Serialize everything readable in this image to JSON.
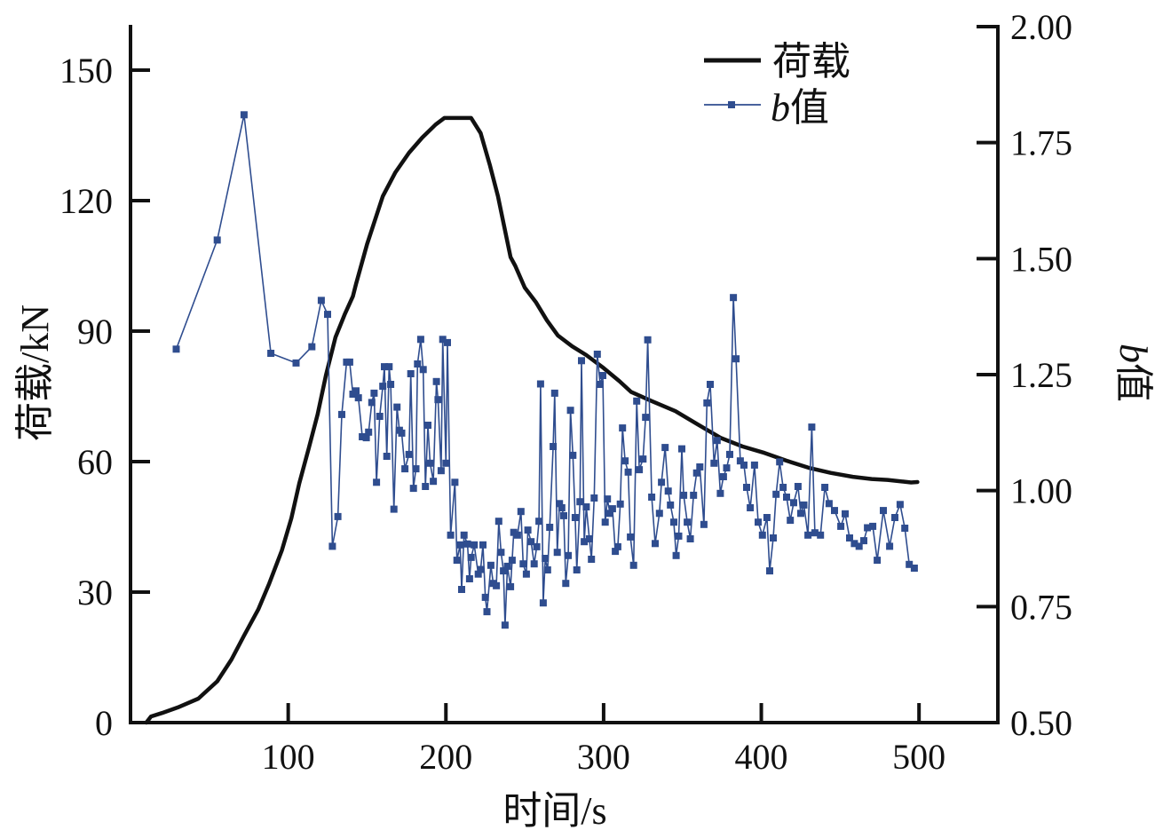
{
  "chart_data": {
    "type": "line",
    "title": "",
    "xlabel": "时间/s",
    "ylabel_left": "荷载/kN",
    "ylabel_right_italic": "b",
    "ylabel_right_suffix": "值",
    "xlim": [
      0,
      550
    ],
    "ylim_left": [
      0,
      160
    ],
    "ylim_right": [
      0.5,
      2.0
    ],
    "x_ticks": [
      100,
      200,
      300,
      400,
      500
    ],
    "x_tick_labels": [
      "100",
      "200",
      "300",
      "400",
      "500"
    ],
    "y_left_ticks": [
      0,
      30,
      60,
      90,
      120,
      150
    ],
    "y_left_tick_labels": [
      "0",
      "30",
      "60",
      "90",
      "120",
      "150"
    ],
    "y_right_ticks": [
      0.5,
      0.75,
      1.0,
      1.25,
      1.5,
      1.75,
      2.0
    ],
    "y_right_tick_labels": [
      "0.50",
      "0.75",
      "1.00",
      "1.25",
      "1.50",
      "1.75",
      "2.00"
    ],
    "grid": false,
    "legend_position": "top-right",
    "colors": {
      "load": "#111111",
      "b_value": "#2f4d8f"
    },
    "series": [
      {
        "name": "荷载",
        "axis": "left",
        "style": "line",
        "x": [
          10,
          13,
          20,
          30,
          43,
          55,
          64,
          72,
          81,
          88,
          96,
          102,
          107,
          113,
          118.6,
          124,
          130,
          136,
          141,
          143,
          150,
          160,
          168,
          176.6,
          185,
          193.5,
          199,
          205,
          210,
          216,
          222,
          228,
          233,
          241,
          244,
          250,
          257,
          264,
          271,
          280,
          289,
          300,
          310,
          317.5,
          330,
          345.6,
          360,
          374,
          388,
          402,
          416,
          430,
          444,
          458,
          470,
          480,
          490,
          495,
          499
        ],
        "values": [
          0,
          1.4,
          2.2,
          3.5,
          5.5,
          9.5,
          14.5,
          20,
          26,
          32,
          39.6,
          47,
          55,
          63,
          70.8,
          80,
          88.6,
          94,
          98,
          100.8,
          110,
          121,
          126.5,
          131,
          134.5,
          137.5,
          139,
          139,
          139,
          139,
          135.5,
          128,
          121,
          107,
          105,
          100,
          96.7,
          92.5,
          89,
          86.5,
          84.5,
          81.5,
          78.5,
          76,
          74,
          71.6,
          68.5,
          65.5,
          63.5,
          62,
          60.2,
          58.6,
          57.4,
          56.5,
          56,
          55.8,
          55.4,
          55.2,
          55.3
        ]
      },
      {
        "name": "b值",
        "axis": "right",
        "style": "line+square-markers",
        "x": [
          29,
          55,
          72,
          89,
          105,
          115,
          121,
          125,
          128,
          131.5,
          134,
          137,
          139,
          141,
          143,
          144.5,
          147,
          149.5,
          151,
          153,
          154.5,
          156,
          158,
          160,
          161,
          162.5,
          164,
          165,
          167,
          169,
          170.5,
          172,
          174,
          176.6,
          177.7,
          179.4,
          181,
          182,
          184,
          185.6,
          187,
          188.6,
          190,
          192,
          194,
          195,
          197,
          198,
          200,
          201,
          203,
          205.7,
          207,
          209,
          210,
          211.5,
          213.7,
          215,
          216,
          218,
          220.5,
          222,
          223.5,
          225,
          226,
          228.5,
          230,
          232,
          233.5,
          235,
          236.5,
          237.5,
          239,
          241,
          242,
          243,
          245.4,
          247.6,
          249,
          251,
          252,
          254,
          256,
          257.6,
          259,
          260,
          261.7,
          263,
          264.5,
          265.8,
          268,
          269,
          270.6,
          272,
          273.5,
          274.7,
          276,
          277.6,
          279,
          280.5,
          282,
          283,
          285,
          286,
          287.7,
          289,
          291,
          292.3,
          294,
          296,
          297.8,
          299.5,
          301,
          302.4,
          304,
          305.6,
          307.4,
          309,
          310.6,
          312,
          313.6,
          315.6,
          317,
          319,
          321,
          322.6,
          325,
          326.6,
          328,
          330.5,
          332.7,
          335.4,
          336.7,
          339,
          341,
          342.4,
          344.5,
          346,
          347.6,
          349.6,
          350.8,
          353,
          355,
          357,
          359,
          361,
          363.6,
          365.5,
          367.6,
          370,
          372,
          374,
          376,
          378,
          380,
          382.3,
          384,
          386.7,
          389,
          390.7,
          393,
          395.7,
          398,
          400.7,
          403.6,
          405.3,
          407.6,
          409.4,
          411.6,
          413.8,
          416,
          418.4,
          420.5,
          423.3,
          425,
          427,
          429.6,
          432,
          434,
          437.5,
          440.3,
          443,
          446.4,
          450.4,
          453.2,
          456,
          459,
          462,
          465,
          467.3,
          470.7,
          473.5,
          477.4,
          481.4,
          484.7,
          488,
          491,
          493.8,
          497
        ],
        "values": [
          1.305,
          1.54,
          1.81,
          1.296,
          1.275,
          1.31,
          1.41,
          1.38,
          0.88,
          0.944,
          1.164,
          1.277,
          1.277,
          1.208,
          1.215,
          1.2,
          1.116,
          1.114,
          1.126,
          1.19,
          1.21,
          1.018,
          1.16,
          1.225,
          1.267,
          1.074,
          1.267,
          1.229,
          0.96,
          1.18,
          1.13,
          1.124,
          1.047,
          1.078,
          1.252,
          1.005,
          1.047,
          1.273,
          1.326,
          1.261,
          1.009,
          1.141,
          1.059,
          1.02,
          1.235,
          1.196,
          1.043,
          1.326,
          1.059,
          1.319,
          0.904,
          1.018,
          0.85,
          0.883,
          0.787,
          0.904,
          0.885,
          0.81,
          0.856,
          0.883,
          0.82,
          0.83,
          0.883,
          0.77,
          0.739,
          0.839,
          0.8,
          0.795,
          0.934,
          0.867,
          0.827,
          0.71,
          0.837,
          0.793,
          0.85,
          0.91,
          0.904,
          0.955,
          0.842,
          0.82,
          0.915,
          0.89,
          0.842,
          0.879,
          0.934,
          1.23,
          0.758,
          0.854,
          0.829,
          0.921,
          1.095,
          1.21,
          0.867,
          0.972,
          0.963,
          0.946,
          0.8,
          0.86,
          1.173,
          1.076,
          0.942,
          0.829,
          0.976,
          1.28,
          0.89,
          0.965,
          0.896,
          0.852,
          0.984,
          1.294,
          1.229,
          1.248,
          0.932,
          0.982,
          0.951,
          0.961,
          0.869,
          0.879,
          0.971,
          1.135,
          1.064,
          1.04,
          0.9,
          0.839,
          1.193,
          1.045,
          1.068,
          1.158,
          1.325,
          0.986,
          0.886,
          0.951,
          1.018,
          1.093,
          0.999,
          0.969,
          0.932,
          0.86,
          0.902,
          1.09,
          0.99,
          0.932,
          0.896,
          0.99,
          1.038,
          1.051,
          0.927,
          1.189,
          1.229,
          1.059,
          1.108,
          0.994,
          1.03,
          1.049,
          1.078,
          1.416,
          1.284,
          1.064,
          1.055,
          1.007,
          0.963,
          1.055,
          0.932,
          0.904,
          0.942,
          0.827,
          0.898,
          0.992,
          1.062,
          1.007,
          0.986,
          0.936,
          0.974,
          1.009,
          0.951,
          0.969,
          0.904,
          1.137,
          0.909,
          0.904,
          1.007,
          0.972,
          0.957,
          0.923,
          0.95,
          0.898,
          0.886,
          0.88,
          0.892,
          0.92,
          0.923,
          0.85,
          0.957,
          0.88,
          0.942,
          0.97,
          0.919,
          0.841,
          0.833
        ]
      }
    ],
    "legend": [
      {
        "label_italic": "",
        "label": "荷载",
        "marker": "thick-line"
      },
      {
        "label_italic": "b",
        "label": "值",
        "marker": "line-with-square"
      }
    ]
  }
}
